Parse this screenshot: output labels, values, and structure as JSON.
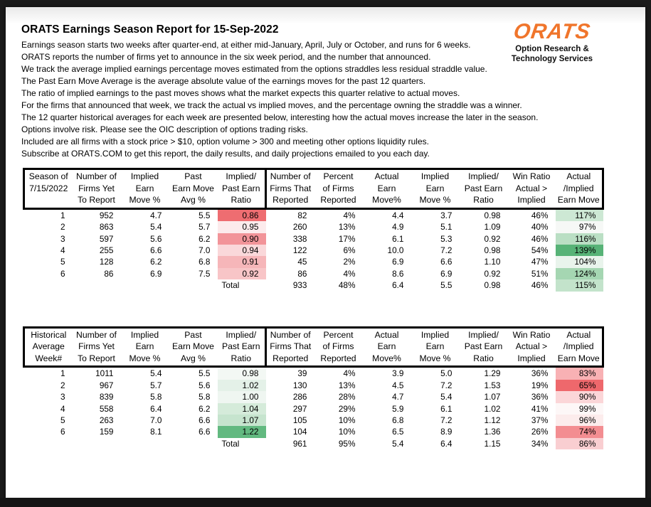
{
  "page": {
    "title": "ORATS Earnings Season Report for 15-Sep-2022",
    "intro_lines": [
      "Earnings season starts two weeks after quarter-end, at either mid-January, April, July or October, and runs for 6 weeks.",
      "ORATS reports the number of firms yet to announce in the six week period, and the number that announced.",
      "We track the average implied earnings percentage moves estimated from the options straddles less residual straddle value.",
      "The Past Earn Move Average is the average absolute value of the earnings moves for the past 12 quarters.",
      "The ratio of implied earnings to the past moves shows what the market expects this quarter relative to actual moves.",
      "For the firms that announced that week, we track the actual vs implied moves, and the percentage owning the straddle was a winner.",
      "The 12 quarter historical averages for each week are presented below, interesting how the actual moves increase the later in the season.",
      "Options involve risk. Please see the OIC description of options trading risks.",
      "Included are all firms with a stock price > $10, option volume > 300 and meeting other options liquidity rules.",
      "Subscribe at ORATS.COM to get this report, the daily results, and daily projections emailed to you each day."
    ],
    "logo": {
      "brand": "ORATS",
      "brand_color": "#F0752B",
      "tagline_line1": "Option Research &",
      "tagline_line2": "Technology Services"
    }
  },
  "tables": [
    {
      "id": "current-season",
      "headers": [
        [
          "Season of",
          "7/15/2022",
          ""
        ],
        [
          "Number of",
          "Firms Yet",
          "To Report"
        ],
        [
          "Implied",
          "Earn",
          "Move %"
        ],
        [
          "Past",
          "Earn Move",
          "Avg %"
        ],
        [
          "Implied/",
          "Past Earn",
          "Ratio"
        ],
        [
          "Number of",
          "Firms That",
          "Reported"
        ],
        [
          "Percent",
          "of Firms",
          "Reported"
        ],
        [
          "Actual",
          "Earn",
          "Move%"
        ],
        [
          "Implied",
          "Earn",
          "Move %"
        ],
        [
          "Implied/",
          "Past Earn",
          "Ratio"
        ],
        [
          "Win Ratio",
          "Actual >",
          "Implied"
        ],
        [
          "Actual",
          "/Implied",
          "Earn Move"
        ]
      ],
      "rows": [
        {
          "cells": [
            "1",
            "952",
            "4.7",
            "5.5",
            "0.86",
            "82",
            "4%",
            "4.4",
            "3.7",
            "0.98",
            "46%",
            "117%"
          ],
          "bg": {
            "4": "#EE6D71",
            "11": "#CDE8D4"
          }
        },
        {
          "cells": [
            "2",
            "863",
            "5.4",
            "5.7",
            "0.95",
            "260",
            "13%",
            "4.9",
            "5.1",
            "1.09",
            "40%",
            "97%"
          ],
          "bg": {
            "4": "#FCEBEC",
            "11": "#F6F8F6"
          }
        },
        {
          "cells": [
            "3",
            "597",
            "5.6",
            "6.2",
            "0.90",
            "338",
            "17%",
            "6.1",
            "5.3",
            "0.92",
            "46%",
            "116%"
          ],
          "bg": {
            "4": "#F29499",
            "11": "#BADFC4"
          }
        },
        {
          "cells": [
            "4",
            "255",
            "6.6",
            "7.0",
            "0.94",
            "122",
            "6%",
            "10.0",
            "7.2",
            "0.98",
            "54%",
            "139%"
          ],
          "bg": {
            "4": "#FAD8DA",
            "11": "#57B377"
          }
        },
        {
          "cells": [
            "5",
            "128",
            "6.2",
            "6.8",
            "0.91",
            "45",
            "2%",
            "6.9",
            "6.6",
            "1.10",
            "47%",
            "104%"
          ],
          "bg": {
            "4": "#F6B6B9",
            "11": "#E9F4EC"
          }
        },
        {
          "cells": [
            "6",
            "86",
            "6.9",
            "7.5",
            "0.92",
            "86",
            "4%",
            "8.6",
            "6.9",
            "0.92",
            "51%",
            "124%"
          ],
          "bg": {
            "4": "#F8C5C7",
            "11": "#A5D6B2"
          }
        }
      ],
      "total": {
        "cells": [
          "",
          "",
          "",
          "",
          "Total",
          "933",
          "48%",
          "6.4",
          "5.5",
          "0.98",
          "46%",
          "115%"
        ],
        "bg": {
          "11": "#C3E3CB"
        }
      }
    },
    {
      "id": "historical-average",
      "headers": [
        [
          "Historical",
          "Average",
          "Week#"
        ],
        [
          "Number of",
          "Firms Yet",
          "To Report"
        ],
        [
          "Implied",
          "Earn",
          "Move %"
        ],
        [
          "Past",
          "Earn Move",
          "Avg %"
        ],
        [
          "Implied/",
          "Past Earn",
          "Ratio"
        ],
        [
          "Number of",
          "Firms That",
          "Reported"
        ],
        [
          "Percent",
          "of Firms",
          "Reported"
        ],
        [
          "Actual",
          "Earn",
          "Move%"
        ],
        [
          "Implied",
          "Earn",
          "Move %"
        ],
        [
          "Implied/",
          "Past Earn",
          "Ratio"
        ],
        [
          "Win Ratio",
          "Actual >",
          "Implied"
        ],
        [
          "Actual",
          "/Implied",
          "Earn Move"
        ]
      ],
      "rows": [
        {
          "cells": [
            "1",
            "1011",
            "5.4",
            "5.5",
            "0.98",
            "39",
            "4%",
            "3.9",
            "5.0",
            "1.29",
            "36%",
            "83%"
          ],
          "bg": {
            "4": "#F3F8F4",
            "11": "#F8B1B4"
          }
        },
        {
          "cells": [
            "2",
            "967",
            "5.7",
            "5.6",
            "1.02",
            "130",
            "13%",
            "4.5",
            "7.2",
            "1.53",
            "19%",
            "65%"
          ],
          "bg": {
            "4": "#E4F1E8",
            "11": "#EE686C"
          }
        },
        {
          "cells": [
            "3",
            "839",
            "5.8",
            "5.8",
            "1.00",
            "286",
            "28%",
            "4.7",
            "5.4",
            "1.07",
            "36%",
            "90%"
          ],
          "bg": {
            "4": "#EFF6F1",
            "11": "#FBD6D8"
          }
        },
        {
          "cells": [
            "4",
            "558",
            "6.4",
            "6.2",
            "1.04",
            "297",
            "29%",
            "5.9",
            "6.1",
            "1.02",
            "41%",
            "99%"
          ],
          "bg": {
            "4": "#D5EBDA",
            "11": "#FDF7F7"
          }
        },
        {
          "cells": [
            "5",
            "263",
            "7.0",
            "6.6",
            "1.07",
            "105",
            "10%",
            "6.8",
            "7.2",
            "1.12",
            "37%",
            "96%"
          ],
          "bg": {
            "4": "#C6E4CE",
            "11": "#FCECEC"
          }
        },
        {
          "cells": [
            "6",
            "159",
            "8.1",
            "6.6",
            "1.22",
            "104",
            "10%",
            "6.5",
            "8.9",
            "1.36",
            "26%",
            "74%"
          ],
          "bg": {
            "4": "#62B980",
            "11": "#F38D91"
          }
        }
      ],
      "total": {
        "cells": [
          "",
          "",
          "",
          "",
          "Total",
          "961",
          "95%",
          "5.4",
          "6.4",
          "1.15",
          "34%",
          "86%"
        ],
        "bg": {
          "11": "#F9CED1"
        }
      }
    }
  ]
}
